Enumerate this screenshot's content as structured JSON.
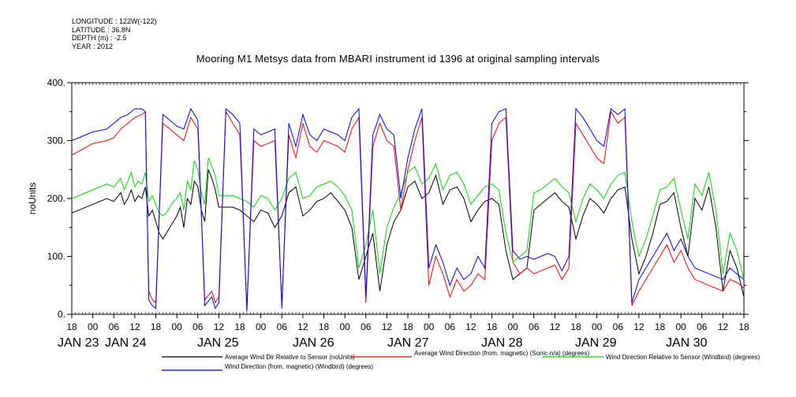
{
  "meta": {
    "longitude": "LONGITUDE : 122W(-122)",
    "latitude": "LATITUDE : 36.8N",
    "depth": "DEPTH (m) : -2.5",
    "year": "YEAR : 2012"
  },
  "chart_data": {
    "type": "line",
    "title": "Mooring M1 Metsys data from MBARI instrument id 1396 at original sampling intervals",
    "ylabel": "noUnits",
    "ylim": [
      0,
      400
    ],
    "yticks": [
      "0.",
      "100.",
      "200.",
      "300.",
      "400."
    ],
    "x_hour_labels": [
      "18",
      "00",
      "06",
      "12",
      "18",
      "00",
      "06",
      "12",
      "18",
      "00",
      "06",
      "12",
      "18",
      "00",
      "06",
      "12",
      "18",
      "00",
      "06",
      "12",
      "18",
      "00",
      "06",
      "12",
      "18",
      "00",
      "06",
      "12",
      "18",
      "00",
      "06",
      "12",
      "18"
    ],
    "x_date_labels": [
      "JAN 23",
      "JAN 24",
      "JAN 25",
      "JAN 26",
      "JAN 27",
      "JAN 28",
      "JAN 29",
      "JAN 30"
    ],
    "x_start": "2012-01-23 18:00",
    "x_end": "2012-01-31 18:00",
    "grid": false,
    "legend_position": "bottom",
    "series": [
      {
        "name": "Average Wind Dir Relative to Sensor (noUnits)",
        "color": "#000000",
        "x": [
          0,
          6,
          10,
          12,
          14,
          15,
          16,
          17,
          18,
          19,
          20,
          21,
          22,
          23,
          24,
          25,
          26,
          27,
          28,
          29,
          30,
          31,
          32,
          33,
          34,
          35,
          36,
          37,
          38,
          39,
          40,
          41,
          42,
          44,
          46,
          48,
          50,
          52,
          54,
          56,
          58,
          60,
          62,
          64,
          66,
          68,
          70,
          72,
          74,
          76,
          78,
          80,
          82,
          84,
          86,
          88,
          90,
          92,
          94,
          96,
          98,
          100,
          102,
          104,
          106,
          108,
          110,
          112,
          114,
          116,
          118,
          120,
          122,
          124,
          126,
          128,
          130,
          132,
          134,
          136,
          138,
          140,
          142,
          144,
          146,
          148,
          150,
          152,
          154,
          156,
          158,
          160,
          162,
          164,
          166,
          168,
          170,
          172,
          174,
          176,
          178,
          180,
          182,
          184,
          186,
          188,
          190,
          192
        ],
        "values": [
          175,
          190,
          200,
          195,
          210,
          190,
          200,
          215,
          195,
          205,
          200,
          220,
          170,
          180,
          160,
          140,
          130,
          140,
          150,
          160,
          170,
          185,
          150,
          200,
          190,
          230,
          220,
          180,
          160,
          250,
          235,
          215,
          185,
          185,
          185,
          180,
          170,
          160,
          180,
          175,
          150,
          170,
          210,
          220,
          170,
          180,
          195,
          200,
          210,
          195,
          180,
          150,
          60,
          100,
          140,
          40,
          120,
          160,
          180,
          220,
          230,
          200,
          210,
          240,
          190,
          215,
          220,
          200,
          160,
          180,
          195,
          200,
          190,
          110,
          60,
          70,
          80,
          180,
          190,
          200,
          210,
          195,
          185,
          130,
          170,
          200,
          190,
          175,
          200,
          215,
          220,
          130,
          70,
          100,
          140,
          190,
          195,
          210,
          150,
          100,
          200,
          180,
          220,
          150,
          40,
          110,
          80,
          30
        ]
      },
      {
        "name": "Average Wind Direction (from, magnetic) (Sonic-n/a) (degrees)",
        "color": "#ff0000",
        "x": [
          0,
          6,
          10,
          12,
          14,
          16,
          18,
          20,
          21,
          22,
          23,
          24,
          26,
          28,
          30,
          32,
          34,
          36,
          38,
          40,
          41,
          42,
          44,
          46,
          48,
          50,
          52,
          54,
          56,
          58,
          60,
          62,
          64,
          66,
          68,
          70,
          72,
          74,
          76,
          78,
          80,
          82,
          84,
          86,
          88,
          90,
          92,
          94,
          96,
          98,
          100,
          102,
          104,
          106,
          108,
          110,
          112,
          114,
          116,
          118,
          120,
          122,
          124,
          126,
          128,
          130,
          132,
          134,
          136,
          138,
          140,
          142,
          144,
          146,
          148,
          150,
          152,
          154,
          156,
          158,
          160,
          162,
          164,
          166,
          168,
          170,
          172,
          174,
          176,
          178,
          180,
          182,
          184,
          186,
          188,
          190,
          192
        ],
        "values": [
          275,
          295,
          300,
          305,
          320,
          330,
          340,
          345,
          350,
          40,
          25,
          20,
          330,
          320,
          310,
          300,
          340,
          320,
          25,
          40,
          20,
          30,
          350,
          330,
          310,
          10,
          300,
          290,
          295,
          300,
          15,
          310,
          270,
          330,
          290,
          280,
          300,
          295,
          290,
          280,
          320,
          340,
          20,
          290,
          330,
          300,
          290,
          180,
          250,
          300,
          340,
          50,
          100,
          70,
          30,
          60,
          40,
          50,
          70,
          60,
          300,
          330,
          340,
          90,
          70,
          80,
          70,
          75,
          80,
          85,
          60,
          80,
          330,
          310,
          290,
          270,
          260,
          350,
          330,
          340,
          15,
          40,
          60,
          80,
          100,
          120,
          90,
          110,
          80,
          60,
          55,
          50,
          45,
          40,
          60,
          55,
          45
        ]
      },
      {
        "name": "Wind Direction Relative to Sensor (Windbird) (degrees)",
        "color": "#00dd00",
        "x": [
          0,
          6,
          10,
          12,
          14,
          15,
          16,
          17,
          18,
          19,
          20,
          21,
          22,
          23,
          24,
          25,
          26,
          27,
          28,
          29,
          30,
          31,
          32,
          33,
          34,
          35,
          36,
          37,
          38,
          39,
          40,
          41,
          42,
          44,
          46,
          48,
          50,
          52,
          54,
          56,
          58,
          60,
          62,
          64,
          66,
          68,
          70,
          72,
          74,
          76,
          78,
          80,
          82,
          84,
          86,
          88,
          90,
          92,
          94,
          96,
          98,
          100,
          102,
          104,
          106,
          108,
          110,
          112,
          114,
          116,
          118,
          120,
          122,
          124,
          126,
          128,
          130,
          132,
          134,
          136,
          138,
          140,
          142,
          144,
          146,
          148,
          150,
          152,
          154,
          156,
          158,
          160,
          162,
          164,
          166,
          168,
          170,
          172,
          174,
          176,
          178,
          180,
          182,
          184,
          186,
          188,
          190,
          192
        ],
        "values": [
          200,
          215,
          225,
          220,
          235,
          215,
          230,
          245,
          220,
          230,
          225,
          245,
          195,
          205,
          190,
          175,
          170,
          175,
          185,
          195,
          200,
          210,
          180,
          230,
          215,
          265,
          250,
          210,
          190,
          270,
          255,
          240,
          205,
          205,
          205,
          200,
          195,
          185,
          205,
          200,
          180,
          200,
          235,
          245,
          200,
          205,
          220,
          225,
          230,
          220,
          205,
          180,
          80,
          120,
          180,
          70,
          150,
          185,
          210,
          245,
          255,
          225,
          235,
          260,
          215,
          240,
          245,
          225,
          190,
          205,
          220,
          225,
          215,
          140,
          90,
          100,
          110,
          210,
          215,
          225,
          235,
          220,
          210,
          160,
          200,
          225,
          215,
          200,
          225,
          240,
          245,
          160,
          100,
          130,
          170,
          215,
          220,
          235,
          180,
          130,
          225,
          205,
          245,
          180,
          70,
          140,
          110,
          60
        ]
      },
      {
        "name": "Wind Direction (from, magnetic) (Windbird) (degrees)",
        "color": "#0000ff",
        "x": [
          0,
          6,
          10,
          12,
          14,
          16,
          18,
          20,
          21,
          22,
          23,
          24,
          26,
          28,
          30,
          32,
          34,
          36,
          38,
          40,
          41,
          42,
          44,
          46,
          48,
          50,
          52,
          54,
          56,
          58,
          60,
          62,
          64,
          66,
          68,
          70,
          72,
          74,
          76,
          78,
          80,
          82,
          84,
          86,
          88,
          90,
          92,
          94,
          96,
          98,
          100,
          102,
          104,
          106,
          108,
          110,
          112,
          114,
          116,
          118,
          120,
          122,
          124,
          126,
          128,
          130,
          132,
          134,
          136,
          138,
          140,
          142,
          144,
          146,
          148,
          150,
          152,
          154,
          156,
          158,
          160,
          162,
          164,
          166,
          168,
          170,
          172,
          174,
          176,
          178,
          180,
          182,
          184,
          186,
          188,
          190,
          192
        ],
        "values": [
          300,
          315,
          320,
          330,
          340,
          345,
          355,
          355,
          350,
          25,
          15,
          10,
          345,
          335,
          325,
          320,
          355,
          335,
          15,
          30,
          10,
          20,
          355,
          345,
          330,
          5,
          320,
          310,
          315,
          320,
          10,
          330,
          290,
          345,
          310,
          300,
          320,
          315,
          310,
          300,
          340,
          355,
          30,
          310,
          345,
          320,
          310,
          200,
          270,
          320,
          355,
          80,
          120,
          90,
          50,
          80,
          60,
          70,
          100,
          80,
          330,
          350,
          355,
          110,
          95,
          100,
          95,
          100,
          105,
          100,
          75,
          100,
          355,
          340,
          320,
          300,
          290,
          355,
          345,
          355,
          20,
          60,
          80,
          100,
          120,
          140,
          110,
          130,
          100,
          80,
          75,
          70,
          65,
          60,
          80,
          70,
          60
        ]
      }
    ]
  }
}
